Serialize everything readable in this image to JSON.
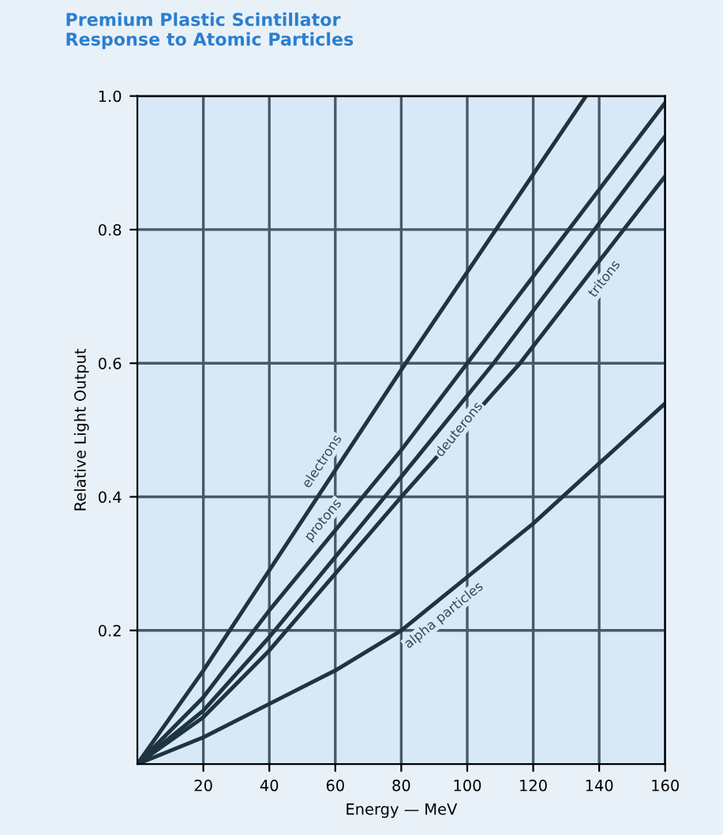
{
  "chart_data": {
    "type": "line",
    "title": "Premium Plastic Scintillator\nResponse to Atomic Particles",
    "xlabel": "Energy — MeV",
    "ylabel": "Relative Light Output",
    "series": [
      {
        "name": "electrons",
        "color": "#1e3440",
        "x": [
          0,
          20,
          40,
          80,
          136
        ],
        "values": [
          0,
          0.14,
          0.29,
          0.59,
          1.0
        ]
      },
      {
        "name": "protons",
        "color": "#1e3440",
        "x": [
          0,
          20,
          40,
          80,
          100,
          160
        ],
        "values": [
          0,
          0.1,
          0.23,
          0.47,
          0.6,
          0.99
        ]
      },
      {
        "name": "deuterons",
        "color": "#1e3440",
        "x": [
          0,
          20,
          40,
          80,
          108,
          160
        ],
        "values": [
          0,
          0.08,
          0.19,
          0.43,
          0.6,
          0.94
        ]
      },
      {
        "name": "tritons",
        "color": "#1e3440",
        "x": [
          0,
          20,
          40,
          80,
          116,
          160
        ],
        "values": [
          0,
          0.07,
          0.17,
          0.4,
          0.6,
          0.88
        ]
      },
      {
        "name": "alpha particles",
        "color": "#1e3440",
        "x": [
          0,
          20,
          40,
          60,
          80,
          100,
          120,
          140,
          160
        ],
        "values": [
          0,
          0.04,
          0.09,
          0.14,
          0.2,
          0.28,
          0.36,
          0.45,
          0.54
        ]
      }
    ],
    "xlim": [
      0,
      160
    ],
    "ylim": [
      0,
      1.0
    ],
    "xticks": [
      20,
      40,
      60,
      80,
      100,
      120,
      140,
      160
    ],
    "yticks": [
      0.2,
      0.4,
      0.6,
      0.8,
      {
        "value": 1.0,
        "label": "1.0"
      }
    ],
    "grid": true,
    "legend": false,
    "marker": "none",
    "line_style": "solid"
  }
}
